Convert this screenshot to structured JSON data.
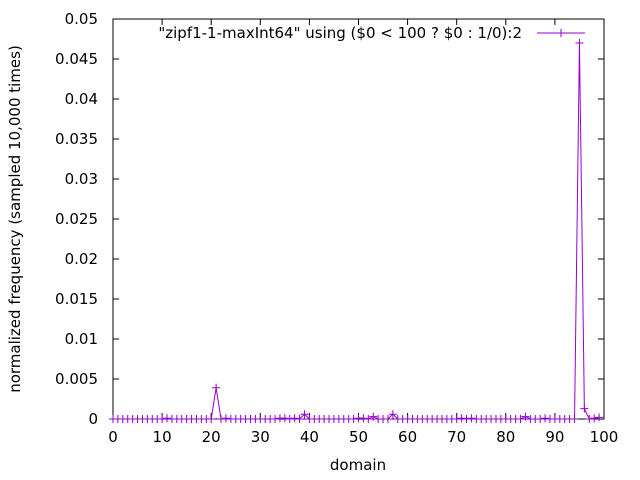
{
  "chart_data": {
    "type": "line",
    "title": "",
    "xlabel": "domain",
    "ylabel": "normalized frequency (sampled 10,000 times)",
    "xlim": [
      0,
      100
    ],
    "ylim": [
      0,
      0.05
    ],
    "x_ticks": [
      "0",
      "10",
      "20",
      "30",
      "40",
      "50",
      "60",
      "70",
      "80",
      "90",
      "100"
    ],
    "y_ticks": [
      "0",
      "0.005",
      "0.01",
      "0.015",
      "0.02",
      "0.025",
      "0.03",
      "0.035",
      "0.04",
      "0.045",
      "0.05"
    ],
    "grid": false,
    "legend": "top-right",
    "series": [
      {
        "name": "\"zipf1-1-maxInt64\" using ($0 < 100 ? $0 : 1/0):2",
        "color": "#9400d3",
        "marker": "plus",
        "x": [
          0,
          1,
          2,
          3,
          4,
          5,
          6,
          7,
          8,
          9,
          10,
          11,
          12,
          13,
          14,
          15,
          16,
          17,
          18,
          19,
          20,
          21,
          22,
          23,
          24,
          25,
          26,
          27,
          28,
          29,
          30,
          31,
          32,
          33,
          34,
          35,
          36,
          37,
          38,
          39,
          40,
          41,
          42,
          43,
          44,
          45,
          46,
          47,
          48,
          49,
          50,
          51,
          52,
          53,
          54,
          55,
          56,
          57,
          58,
          59,
          60,
          61,
          62,
          63,
          64,
          65,
          66,
          67,
          68,
          69,
          70,
          71,
          72,
          73,
          74,
          75,
          76,
          77,
          78,
          79,
          80,
          81,
          82,
          83,
          84,
          85,
          86,
          87,
          88,
          89,
          90,
          91,
          92,
          93,
          94,
          95,
          96,
          97,
          98,
          99
        ],
        "values": [
          0,
          0,
          0,
          0,
          0,
          0,
          0,
          0,
          0,
          0,
          0,
          0.0001,
          0,
          0,
          0,
          0,
          0,
          0,
          0,
          0,
          0,
          0.0039,
          0,
          0.0001,
          0,
          0,
          0,
          0,
          0,
          0,
          0,
          0,
          0,
          0,
          0.0001,
          0.0001,
          0,
          0.0001,
          0,
          0.0006,
          0,
          0,
          0,
          0,
          0,
          0,
          0,
          0,
          0,
          0,
          0.0001,
          0.0001,
          0,
          0.0003,
          0,
          0,
          0,
          0.0006,
          0,
          0,
          0,
          0,
          0,
          0,
          0,
          0,
          0,
          0,
          0,
          0,
          0,
          0.0001,
          0,
          0.0001,
          0,
          0,
          0,
          0,
          0,
          0,
          0,
          0,
          0,
          0,
          0.0003,
          0,
          0,
          0,
          0.0001,
          0,
          0,
          0,
          0,
          0,
          0,
          0.047,
          0.0013,
          0,
          0.0001,
          0.0002
        ]
      }
    ]
  }
}
